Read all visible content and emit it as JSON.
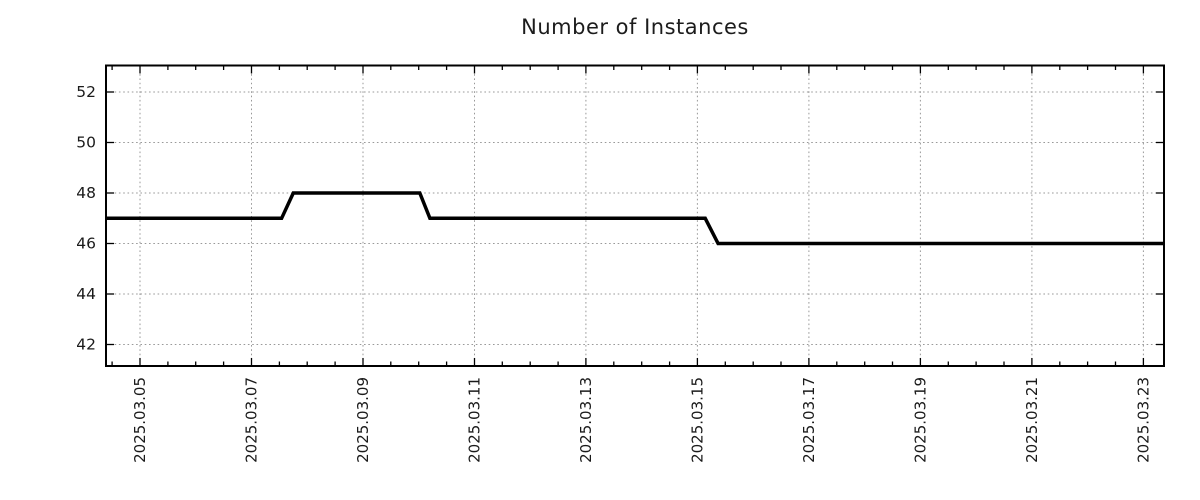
{
  "chart_data": {
    "type": "line",
    "title": "Number of Instances",
    "xlabel": "",
    "ylabel": "",
    "background": "#ffffff",
    "axis_color": "#000000",
    "tick_label_color": "#1a1a1a",
    "legend": {
      "show": false
    },
    "grid": {
      "show": true,
      "style": "dotted",
      "color": "#999999"
    },
    "x_axis": {
      "kind": "time",
      "note": "day offsets measured in days since 2025-03-05 00:00",
      "range_days": [
        -0.61,
        18.37
      ],
      "major_tick_days": [
        0,
        2,
        4,
        6,
        8,
        10,
        12,
        14,
        16,
        18
      ],
      "tick_labels": [
        "2025.03.05",
        "2025.03.07",
        "2025.03.09",
        "2025.03.11",
        "2025.03.13",
        "2025.03.15",
        "2025.03.17",
        "2025.03.19",
        "2025.03.21",
        "2025.03.23"
      ],
      "minor_tick_step_days": 0.5,
      "label_rotation_deg": -90
    },
    "y_axis": {
      "range": [
        41.15,
        53.05
      ],
      "tick_values": [
        42,
        44,
        46,
        48,
        50,
        52
      ],
      "tick_labels": [
        "42",
        "44",
        "46",
        "48",
        "50",
        "52"
      ]
    },
    "series": [
      {
        "name": "Number of Instances",
        "color": "#000000",
        "line_width": 3.5,
        "points": [
          [
            -0.61,
            47
          ],
          [
            2.54,
            47
          ],
          [
            2.75,
            48
          ],
          [
            5.02,
            48
          ],
          [
            5.2,
            47
          ],
          [
            10.14,
            47
          ],
          [
            10.37,
            46
          ],
          [
            18.37,
            46
          ]
        ],
        "steps_readable": [
          {
            "value": 47,
            "from": "chart start (~2025-03-04 09:00)",
            "to": "2025-03-07 ~13:00"
          },
          {
            "value": 48,
            "from": "2025-03-07 ~18:00",
            "to": "2025-03-10 ~00:30"
          },
          {
            "value": 47,
            "from": "2025-03-10 ~05:00",
            "to": "2025-03-15 ~03:30"
          },
          {
            "value": 46,
            "from": "2025-03-15 ~09:00",
            "to": "chart end (~2025-03-23 09:00)"
          }
        ]
      }
    ]
  }
}
